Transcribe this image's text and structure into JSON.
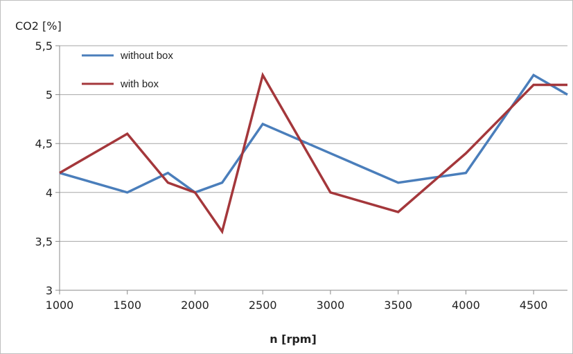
{
  "chart_data": {
    "type": "line",
    "title": "",
    "ylabel": "CO2 [%]",
    "xlabel": "n [rpm]",
    "xlim": [
      1000,
      4750
    ],
    "ylim": [
      3,
      5.5
    ],
    "x_ticks": [
      1000,
      1500,
      2000,
      2500,
      3000,
      3500,
      4000,
      4500
    ],
    "x_tick_labels": [
      "1000",
      "1500",
      "2000",
      "2500",
      "3000",
      "3500",
      "4000",
      "4500"
    ],
    "y_ticks": [
      3,
      3.5,
      4,
      4.5,
      5,
      5.5
    ],
    "y_tick_labels": [
      "3",
      "3,5",
      "4",
      "4,5",
      "5",
      "5,5"
    ],
    "grid": true,
    "legend_position": "top-left",
    "series": [
      {
        "name": "without box",
        "color": "#4a7ebb",
        "x": [
          1000,
          1500,
          1800,
          2000,
          2200,
          2500,
          3000,
          3500,
          4000,
          4500,
          4750
        ],
        "y": [
          4.2,
          4.0,
          4.2,
          4.0,
          4.1,
          4.7,
          4.4,
          4.1,
          4.2,
          5.2,
          5.0
        ]
      },
      {
        "name": "with box",
        "color": "#a4373b",
        "x": [
          1000,
          1500,
          1800,
          2000,
          2200,
          2500,
          3000,
          3500,
          4000,
          4500,
          4750
        ],
        "y": [
          4.2,
          4.6,
          4.1,
          4.0,
          3.6,
          5.2,
          4.0,
          3.8,
          4.4,
          5.1,
          5.1
        ]
      }
    ]
  }
}
